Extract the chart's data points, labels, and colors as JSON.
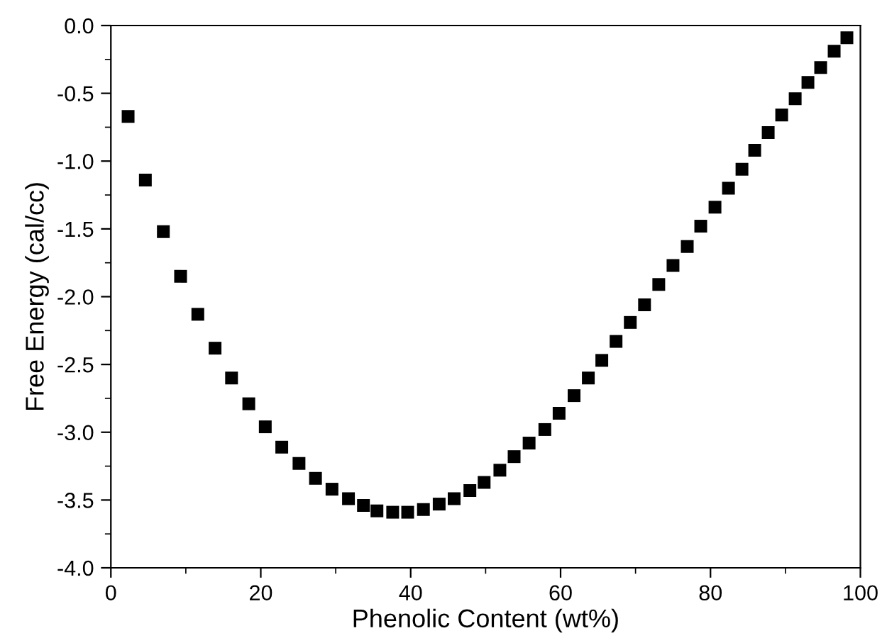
{
  "chart_data": {
    "type": "scatter",
    "xlabel": "Phenolic Content (wt%)",
    "ylabel": "Free Energy (cal/cc)",
    "xlim": [
      0,
      100
    ],
    "xticks": [
      0,
      20,
      40,
      60,
      80,
      100
    ],
    "ylim": [
      -4.0,
      0.0
    ],
    "yticks": [
      {
        "value": -4.0,
        "label": "-4.0"
      },
      {
        "value": -3.5,
        "label": "-3.5"
      },
      {
        "value": -3.0,
        "label": "-3.0"
      },
      {
        "value": -2.5,
        "label": "-2.5"
      },
      {
        "value": -2.0,
        "label": "-2.0"
      },
      {
        "value": -1.5,
        "label": "-1.5"
      },
      {
        "value": -1.0,
        "label": "-1.0"
      },
      {
        "value": -0.5,
        "label": "-0.5"
      },
      {
        "value": 0.0,
        "label": "0.0"
      }
    ],
    "marker": "square",
    "grid": false,
    "legend": false,
    "series": [
      {
        "color": "#000000",
        "x": [
          2.3,
          4.6,
          7.0,
          9.3,
          11.6,
          13.9,
          16.1,
          18.4,
          20.6,
          22.8,
          25.1,
          27.3,
          29.5,
          31.7,
          33.7,
          35.5,
          37.6,
          39.6,
          41.7,
          43.8,
          45.8,
          47.9,
          49.8,
          51.9,
          53.8,
          55.8,
          57.9,
          59.8,
          61.8,
          63.7,
          65.5,
          67.4,
          69.3,
          71.2,
          73.1,
          75.0,
          76.9,
          78.7,
          80.6,
          82.4,
          84.2,
          85.9,
          87.7,
          89.5,
          91.3,
          93.0,
          94.7,
          96.5,
          98.2
        ],
        "values": [
          -0.67,
          -1.14,
          -1.52,
          -1.85,
          -2.13,
          -2.38,
          -2.6,
          -2.79,
          -2.96,
          -3.11,
          -3.23,
          -3.34,
          -3.42,
          -3.49,
          -3.54,
          -3.58,
          -3.59,
          -3.59,
          -3.57,
          -3.53,
          -3.49,
          -3.43,
          -3.37,
          -3.28,
          -3.18,
          -3.08,
          -2.98,
          -2.86,
          -2.73,
          -2.6,
          -2.47,
          -2.33,
          -2.19,
          -2.06,
          -1.91,
          -1.77,
          -1.63,
          -1.48,
          -1.34,
          -1.2,
          -1.06,
          -0.92,
          -0.79,
          -0.66,
          -0.54,
          -0.42,
          -0.31,
          -0.19,
          -0.09
        ]
      }
    ]
  }
}
